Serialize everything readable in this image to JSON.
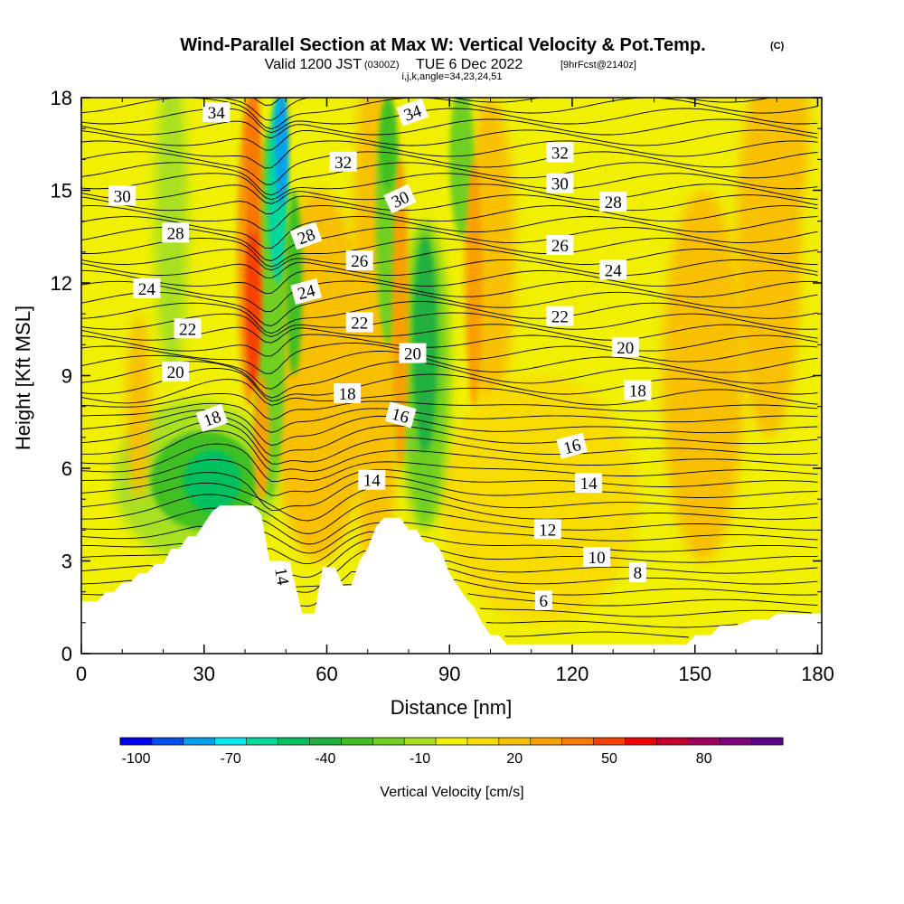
{
  "title": {
    "main": "Wind-Parallel Section at Max W: Vertical Velocity & Pot.Temp.",
    "copyright": "(C)",
    "valid": "Valid 1200 JST",
    "utc": "(0300Z)",
    "date": "TUE 6 Dec 2022",
    "fcst": "[9hrFcst@2140z]",
    "ijk": "i,j,k,angle=34,23,24,51"
  },
  "colorbar": {
    "label": "Vertical Velocity [cm/s]",
    "tick_labels": [
      "-100",
      "-70",
      "-40",
      "-10",
      "20",
      "50",
      "80"
    ],
    "colors": [
      "#0000f0",
      "#0050f0",
      "#00a0f0",
      "#00e8f0",
      "#00d8a0",
      "#00c060",
      "#20b040",
      "#40c020",
      "#70d020",
      "#a8e020",
      "#f0f000",
      "#f8dc00",
      "#f8c000",
      "#f8a000",
      "#f87800",
      "#f84000",
      "#f00000",
      "#c80030",
      "#a00060",
      "#800080",
      "#600090"
    ]
  },
  "chart_data": {
    "type": "heatmap",
    "title": "Wind-Parallel Section at Max W: Vertical Velocity & Pot.Temp.",
    "xlabel": "Distance [nm]",
    "ylabel": "Height [Kft MSL]",
    "xlim": [
      0,
      181
    ],
    "ylim": [
      0,
      18
    ],
    "x_ticks": [
      "0",
      "30",
      "60",
      "90",
      "120",
      "150",
      "180"
    ],
    "y_ticks": [
      "0",
      "3",
      "6",
      "9",
      "12",
      "15",
      "18"
    ],
    "grid": false,
    "shaded_field": "Vertical Velocity [cm/s]",
    "contour_field": "Potential Temperature",
    "terrain_kft": [
      [
        0,
        1.7
      ],
      [
        4,
        1.7
      ],
      [
        6,
        2.0
      ],
      [
        8,
        2.0
      ],
      [
        10,
        2.3
      ],
      [
        12,
        2.3
      ],
      [
        14,
        2.6
      ],
      [
        16,
        2.6
      ],
      [
        18,
        2.9
      ],
      [
        20,
        2.9
      ],
      [
        22,
        3.4
      ],
      [
        24,
        3.4
      ],
      [
        26,
        3.8
      ],
      [
        28,
        3.8
      ],
      [
        30,
        4.2
      ],
      [
        32,
        4.6
      ],
      [
        34,
        4.8
      ],
      [
        38,
        4.8
      ],
      [
        42,
        4.8
      ],
      [
        44,
        4.5
      ],
      [
        46,
        3.0
      ],
      [
        50,
        3.0
      ],
      [
        52,
        2.4
      ],
      [
        54,
        1.3
      ],
      [
        57,
        1.3
      ],
      [
        59,
        2.8
      ],
      [
        62,
        2.8
      ],
      [
        64,
        2.2
      ],
      [
        66,
        2.2
      ],
      [
        68,
        3.0
      ],
      [
        70,
        3.4
      ],
      [
        72,
        4.1
      ],
      [
        74,
        4.4
      ],
      [
        78,
        4.4
      ],
      [
        80,
        4.0
      ],
      [
        82,
        4.0
      ],
      [
        84,
        3.6
      ],
      [
        86,
        3.6
      ],
      [
        88,
        3.3
      ],
      [
        90,
        2.6
      ],
      [
        92,
        2.2
      ],
      [
        94,
        1.8
      ],
      [
        96,
        1.5
      ],
      [
        98,
        1.0
      ],
      [
        100,
        0.6
      ],
      [
        102,
        0.6
      ],
      [
        104,
        0.3
      ],
      [
        120,
        0.3
      ],
      [
        140,
        0.3
      ],
      [
        144,
        0.3
      ],
      [
        148,
        0.3
      ],
      [
        150,
        0.6
      ],
      [
        154,
        0.6
      ],
      [
        156,
        0.9
      ],
      [
        160,
        0.9
      ],
      [
        164,
        1.1
      ],
      [
        168,
        1.1
      ],
      [
        170,
        1.3
      ],
      [
        181,
        1.3
      ]
    ],
    "w_features": [
      {
        "name": "updraft",
        "center_x": 42,
        "center_kft": 12,
        "peak_cm_s": 50
      },
      {
        "name": "downdraft",
        "center_x": 48,
        "center_kft": 15,
        "peak_cm_s": -80
      },
      {
        "name": "downdraft",
        "center_x": 30,
        "center_kft": 5.5,
        "peak_cm_s": -40
      },
      {
        "name": "downdraft",
        "center_x": 84,
        "center_kft": 10,
        "peak_cm_s": -40
      },
      {
        "name": "downdraft",
        "center_x": 75,
        "center_kft": 15,
        "peak_cm_s": -30
      }
    ],
    "contour_labels": [
      {
        "text": "34",
        "x": 33,
        "y": 17.5,
        "angle": 0
      },
      {
        "text": "34",
        "x": 81,
        "y": 17.5,
        "angle": -20
      },
      {
        "text": "32",
        "x": 64,
        "y": 15.9,
        "angle": 0
      },
      {
        "text": "32",
        "x": 117,
        "y": 16.2,
        "angle": 0
      },
      {
        "text": "30",
        "x": 10,
        "y": 14.8,
        "angle": 0
      },
      {
        "text": "30",
        "x": 117,
        "y": 15.2,
        "angle": 0
      },
      {
        "text": "30",
        "x": 78,
        "y": 14.7,
        "angle": -25
      },
      {
        "text": "28",
        "x": 23,
        "y": 13.6,
        "angle": 0
      },
      {
        "text": "28",
        "x": 55,
        "y": 13.5,
        "angle": -20
      },
      {
        "text": "28",
        "x": 130,
        "y": 14.6,
        "angle": 0
      },
      {
        "text": "26",
        "x": 68,
        "y": 12.7,
        "angle": 0
      },
      {
        "text": "26",
        "x": 117,
        "y": 13.2,
        "angle": 0
      },
      {
        "text": "24",
        "x": 16,
        "y": 11.8,
        "angle": 0
      },
      {
        "text": "24",
        "x": 55,
        "y": 11.7,
        "angle": -15
      },
      {
        "text": "24",
        "x": 130,
        "y": 12.4,
        "angle": 0
      },
      {
        "text": "22",
        "x": 26,
        "y": 10.5,
        "angle": 0
      },
      {
        "text": "22",
        "x": 68,
        "y": 10.7,
        "angle": 0
      },
      {
        "text": "22",
        "x": 117,
        "y": 10.9,
        "angle": 0
      },
      {
        "text": "20",
        "x": 23,
        "y": 9.1,
        "angle": 0
      },
      {
        "text": "20",
        "x": 81,
        "y": 9.7,
        "angle": 0
      },
      {
        "text": "20",
        "x": 133,
        "y": 9.9,
        "angle": 0
      },
      {
        "text": "18",
        "x": 32,
        "y": 7.6,
        "angle": -20
      },
      {
        "text": "18",
        "x": 65,
        "y": 8.4,
        "angle": 0
      },
      {
        "text": "18",
        "x": 136,
        "y": 8.5,
        "angle": 0
      },
      {
        "text": "16",
        "x": 78,
        "y": 7.7,
        "angle": 15
      },
      {
        "text": "16",
        "x": 120,
        "y": 6.7,
        "angle": -15
      },
      {
        "text": "14",
        "x": 71,
        "y": 5.6,
        "angle": 0
      },
      {
        "text": "14",
        "x": 124,
        "y": 5.5,
        "angle": 0
      },
      {
        "text": "14",
        "x": 49,
        "y": 2.5,
        "angle": 80
      },
      {
        "text": "12",
        "x": 114,
        "y": 4.0,
        "angle": 0
      },
      {
        "text": "10",
        "x": 126,
        "y": 3.1,
        "angle": 0
      },
      {
        "text": "8",
        "x": 136,
        "y": 2.6,
        "angle": 0
      },
      {
        "text": "6",
        "x": 113,
        "y": 1.7,
        "angle": 0
      }
    ]
  }
}
